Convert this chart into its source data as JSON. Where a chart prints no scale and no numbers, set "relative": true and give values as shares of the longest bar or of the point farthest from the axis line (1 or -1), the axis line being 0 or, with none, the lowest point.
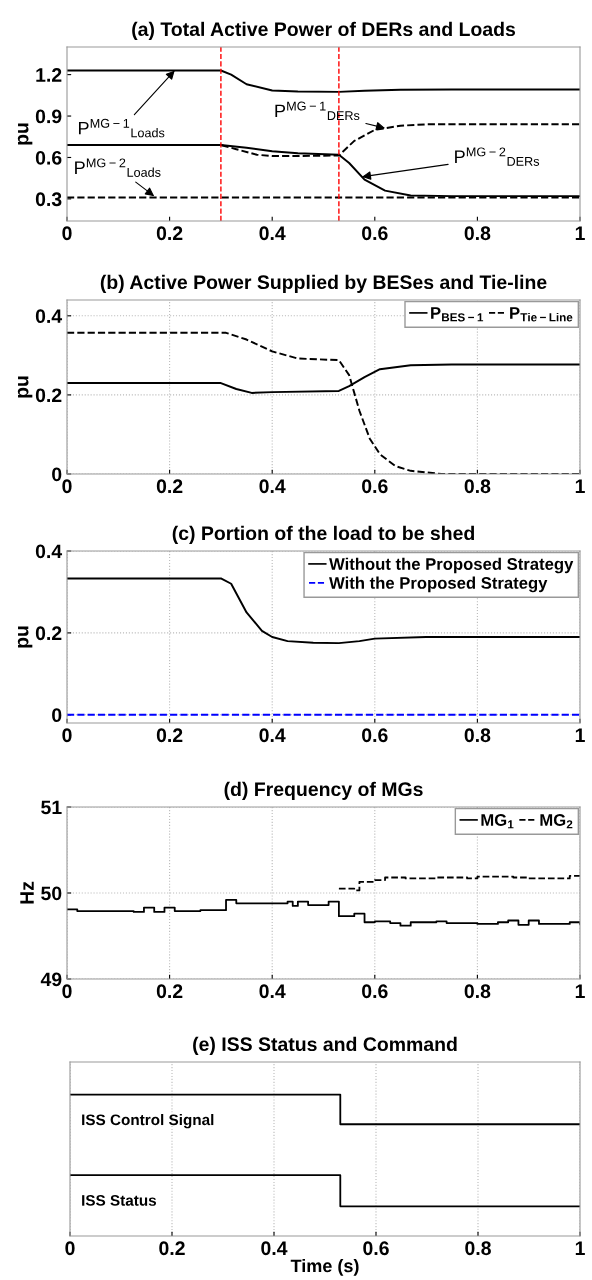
{
  "chart_data": [
    {
      "type": "line",
      "title": "(a) Total Active Power of DERs and Loads",
      "ylabel": "pu",
      "xlim": [
        0,
        1
      ],
      "xticks": [
        0,
        0.2,
        0.4,
        0.6,
        0.8,
        1
      ],
      "ylim": [
        0.14,
        1.4
      ],
      "yticks": [
        0.3,
        0.6,
        0.9,
        1.2
      ],
      "grid": false,
      "legend": false,
      "series": [
        {
          "color": "#000000",
          "line_style": "solid",
          "x": [
            0,
            0.3,
            0.32,
            0.35,
            0.4,
            0.45,
            0.53,
            0.58,
            0.65,
            0.75,
            1
          ],
          "values": [
            1.23,
            1.23,
            1.2,
            1.13,
            1.085,
            1.078,
            1.075,
            1.083,
            1.09,
            1.092,
            1.092
          ]
        },
        {
          "color": "#000000",
          "line_style": "dashed",
          "x": [
            0,
            0.3,
            0.33,
            0.37,
            0.4,
            0.45,
            0.53,
            0.56,
            0.6,
            0.65,
            0.7,
            0.8,
            1
          ],
          "values": [
            0.69,
            0.69,
            0.66,
            0.62,
            0.61,
            0.61,
            0.615,
            0.72,
            0.8,
            0.83,
            0.84,
            0.84,
            0.84
          ]
        },
        {
          "color": "#000000",
          "line_style": "solid",
          "x": [
            0,
            0.3,
            0.35,
            0.4,
            0.45,
            0.53,
            0.55,
            0.58,
            0.62,
            0.67,
            0.75,
            1
          ],
          "values": [
            0.69,
            0.69,
            0.67,
            0.645,
            0.63,
            0.62,
            0.56,
            0.44,
            0.36,
            0.325,
            0.32,
            0.32
          ]
        },
        {
          "color": "#000000",
          "line_style": "dashed",
          "x": [
            0,
            1
          ],
          "values": [
            0.31,
            0.31
          ]
        }
      ],
      "ref_lines": [
        {
          "axis": "x",
          "value": 0.3,
          "color": "#ff0000",
          "line_style": "dashed"
        },
        {
          "axis": "x",
          "value": 0.53,
          "color": "#ff0000",
          "line_style": "dashed"
        }
      ],
      "annotations": [
        {
          "text": "P$^{MG−1}$$_{Loads}$",
          "x": 0.21,
          "y": 1.23
        },
        {
          "text": "P$^{MG−2}$$_{Loads}$",
          "x": 0.17,
          "y": 0.32
        },
        {
          "text": "P$^{MG−1}$$_{DERs}$",
          "x": 0.62,
          "y": 0.812
        },
        {
          "text": "P$^{MG−2}$$_{DERs}$",
          "x": 0.575,
          "y": 0.46
        }
      ]
    },
    {
      "type": "line",
      "title": "(b) Active Power Supplied by BESes and Tie-line",
      "ylabel": "pu",
      "xlim": [
        0,
        1
      ],
      "xticks": [
        0,
        0.2,
        0.4,
        0.6,
        0.8,
        1
      ],
      "ylim": [
        0,
        0.44
      ],
      "yticks": [
        0,
        0.2,
        0.4
      ],
      "grid": true,
      "legend": "top right",
      "series": [
        {
          "name": "P$_{BES−1}$",
          "color": "#000000",
          "line_style": "solid",
          "x": [
            0,
            0.3,
            0.33,
            0.36,
            0.4,
            0.53,
            0.55,
            0.58,
            0.61,
            0.67,
            0.75,
            1
          ],
          "values": [
            0.23,
            0.23,
            0.215,
            0.205,
            0.207,
            0.21,
            0.222,
            0.245,
            0.265,
            0.275,
            0.277,
            0.277
          ]
        },
        {
          "name": "P$_{Tie−Line}$",
          "color": "#000000",
          "line_style": "dashed",
          "x": [
            0,
            0.31,
            0.35,
            0.4,
            0.45,
            0.53,
            0.55,
            0.57,
            0.59,
            0.61,
            0.64,
            0.67,
            0.73,
            1
          ],
          "values": [
            0.357,
            0.357,
            0.34,
            0.31,
            0.292,
            0.288,
            0.25,
            0.16,
            0.09,
            0.05,
            0.02,
            0.008,
            0,
            0
          ]
        }
      ]
    },
    {
      "type": "line",
      "title": "(c) Portion of the load to be shed",
      "ylabel": "pu",
      "xlim": [
        0,
        1
      ],
      "xticks": [
        0,
        0.2,
        0.4,
        0.6,
        0.8,
        1
      ],
      "ylim": [
        -0.02,
        0.4
      ],
      "yticks": [
        0,
        0.2,
        0.4
      ],
      "grid": true,
      "legend": "top right",
      "series": [
        {
          "name": "Without the Proposed Strategy",
          "color": "#000000",
          "line_style": "solid",
          "x": [
            0,
            0.3,
            0.32,
            0.35,
            0.38,
            0.4,
            0.43,
            0.48,
            0.53,
            0.57,
            0.6,
            0.7,
            1
          ],
          "values": [
            0.333,
            0.333,
            0.32,
            0.25,
            0.205,
            0.19,
            0.18,
            0.176,
            0.175,
            0.18,
            0.186,
            0.19,
            0.19
          ]
        },
        {
          "name": "With the Proposed Strategy",
          "color": "#0000ff",
          "line_style": "dashed",
          "x": [
            0,
            1
          ],
          "values": [
            0,
            0
          ]
        }
      ]
    },
    {
      "type": "step",
      "title": "(d) Frequency of MGs",
      "ylabel": "Hz",
      "xlim": [
        0,
        1
      ],
      "xticks": [
        0,
        0.2,
        0.4,
        0.6,
        0.8,
        1
      ],
      "ylim": [
        49,
        51
      ],
      "yticks": [
        49,
        50,
        51
      ],
      "grid": true,
      "legend": "top right",
      "series": [
        {
          "name": "MG$_{1}$",
          "color": "#000000",
          "line_style": "solid",
          "x": [
            0,
            0.02,
            0.13,
            0.15,
            0.17,
            0.19,
            0.21,
            0.26,
            0.31,
            0.33,
            0.43,
            0.44,
            0.45,
            0.47,
            0.51,
            0.53,
            0.56,
            0.58,
            0.6,
            0.63,
            0.65,
            0.67,
            0.72,
            0.74,
            0.8,
            0.84,
            0.86,
            0.88,
            0.9,
            0.92,
            0.98,
            1.0
          ],
          "values": [
            49.81,
            49.79,
            49.78,
            49.83,
            49.78,
            49.83,
            49.79,
            49.8,
            49.92,
            49.88,
            49.9,
            49.85,
            49.9,
            49.86,
            49.9,
            49.73,
            49.76,
            49.66,
            49.67,
            49.65,
            49.62,
            49.66,
            49.67,
            49.65,
            49.64,
            49.66,
            49.68,
            49.63,
            49.68,
            49.64,
            49.66,
            49.64
          ]
        },
        {
          "name": "MG$_{2}$",
          "color": "#000000",
          "line_style": "dashed",
          "x": [
            0.53,
            0.56,
            0.57,
            0.6,
            0.62,
            0.66,
            0.72,
            0.78,
            0.8,
            0.87,
            0.9,
            0.98,
            1.0
          ],
          "values": [
            50.05,
            50.03,
            50.13,
            50.15,
            50.18,
            50.17,
            50.18,
            50.17,
            50.19,
            50.18,
            50.17,
            50.2,
            50.16
          ]
        }
      ]
    },
    {
      "type": "step",
      "title": "(e) ISS Status and Command",
      "xlabel": "Time (s)",
      "xlim": [
        0,
        1
      ],
      "xticks": [
        0,
        0.2,
        0.4,
        0.6,
        0.8,
        1
      ],
      "relative": true,
      "grid": "x",
      "tick_labels": "x",
      "series": [
        {
          "name": "ISS Control Signal",
          "color": "#000000",
          "line_style": "solid",
          "x": [
            0,
            0.53,
            1
          ],
          "values": [
            1,
            0.79,
            0.79
          ]
        },
        {
          "name": "ISS Status",
          "color": "#000000",
          "line_style": "solid",
          "x": [
            0,
            0.53,
            1
          ],
          "values": [
            0.43,
            0.21,
            0.21
          ]
        }
      ]
    }
  ]
}
